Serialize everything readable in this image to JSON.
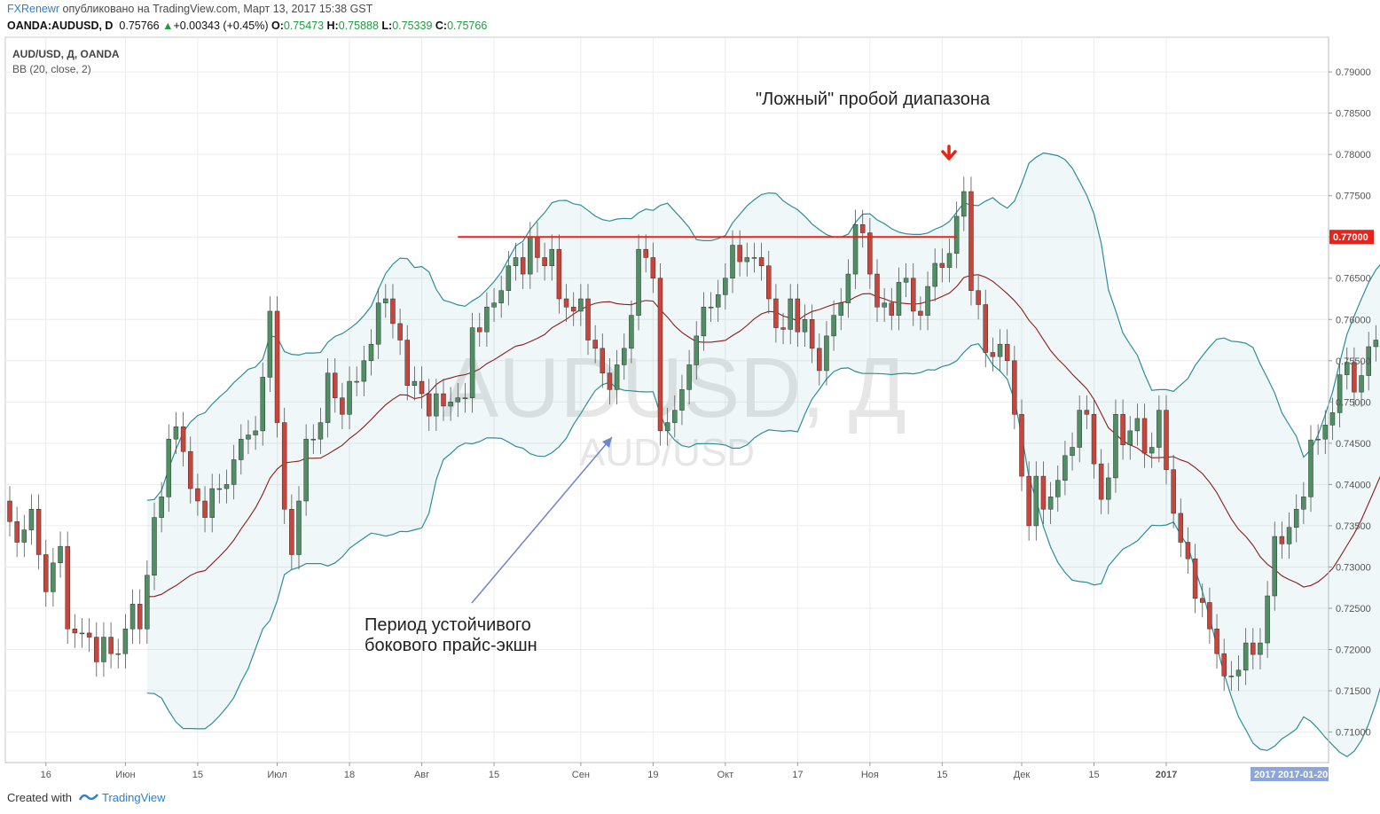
{
  "header": {
    "publisher": "FXRenewr",
    "published_text": "опубликовано на TradingView.com, Март 13, 2017 15:38 GST",
    "symbol_line": "OANDA:AUDUSD, D",
    "last": "0.75766",
    "change": "+0.00343 (+0.45%)",
    "o_label": "O:",
    "o_value": "0.75473",
    "h_label": "H:",
    "h_value": "0.75888",
    "l_label": "L:",
    "l_value": "0.75339",
    "c_label": "C:",
    "c_value": "0.75766"
  },
  "footer": {
    "created_with": "Created with",
    "brand": "TradingView"
  },
  "colors": {
    "up": "#4f8f63",
    "down": "#c9443a",
    "band": "#2b8e98",
    "basis": "#8b1c1c",
    "level": "#e8231a",
    "accent": "#2a7fd4"
  },
  "chart_data": {
    "type": "candlestick",
    "title": "AUD/USD, Д, OANDA",
    "indicator": "BB (20, close, 2)",
    "watermark_main": "AUDUSD, Д",
    "watermark_sub": "AUD/USD",
    "x_ticks": [
      "16",
      "Июн",
      "15",
      "Июл",
      "18",
      "Авг",
      "15",
      "Сен",
      "19",
      "Окт",
      "17",
      "Ноя",
      "15",
      "Дек",
      "15",
      "2017"
    ],
    "x_tick_bars": [
      5,
      16,
      26,
      37,
      47,
      57,
      67,
      79,
      89,
      99,
      109,
      119,
      129,
      140,
      150,
      160
    ],
    "y_ticks": [
      0.71,
      0.715,
      0.72,
      0.725,
      0.73,
      0.735,
      0.74,
      0.745,
      0.75,
      0.755,
      0.76,
      0.765,
      0.77,
      0.775,
      0.78,
      0.785,
      0.79
    ],
    "y_tick_labels": [
      "0.71000",
      "0.71500",
      "0.72000",
      "0.72500",
      "0.73000",
      "0.73500",
      "0.74000",
      "0.74500",
      "0.75000",
      "0.75500",
      "0.76000",
      "0.76500",
      "0.77000",
      "0.77500",
      "0.78000",
      "0.78500",
      "0.79000"
    ],
    "ylim": [
      0.7063,
      0.7942
    ],
    "level_price": 0.77,
    "level_label": "0.77000",
    "level_range_bars": [
      62,
      131
    ],
    "date_labels": [
      "2017",
      "2017-01-20"
    ],
    "annotation_top": "\"Ложный\" пробой диапазона",
    "annotation_bottom_1": "Период устойчивого",
    "annotation_bottom_2": "бокового прайс-экшн",
    "close": [
      0.7355,
      0.733,
      0.7345,
      0.737,
      0.7315,
      0.727,
      0.7305,
      0.7325,
      0.7225,
      0.722,
      0.722,
      0.7215,
      0.7185,
      0.7215,
      0.7195,
      0.7195,
      0.7225,
      0.7255,
      0.7225,
      0.729,
      0.736,
      0.7385,
      0.7455,
      0.747,
      0.744,
      0.7395,
      0.738,
      0.736,
      0.7395,
      0.7395,
      0.74,
      0.743,
      0.7455,
      0.746,
      0.7465,
      0.753,
      0.761,
      0.7475,
      0.737,
      0.7315,
      0.738,
      0.7455,
      0.7455,
      0.7475,
      0.7535,
      0.7505,
      0.7485,
      0.7525,
      0.7525,
      0.755,
      0.757,
      0.762,
      0.7625,
      0.7595,
      0.7575,
      0.752,
      0.7525,
      0.751,
      0.7483,
      0.751,
      0.7495,
      0.75,
      0.7505,
      0.7505,
      0.759,
      0.7585,
      0.7615,
      0.762,
      0.7635,
      0.7665,
      0.7675,
      0.7655,
      0.77,
      0.7675,
      0.7665,
      0.7685,
      0.7625,
      0.7615,
      0.761,
      0.7625,
      0.7575,
      0.7565,
      0.7535,
      0.7515,
      0.7545,
      0.7565,
      0.7605,
      0.7685,
      0.7675,
      0.765,
      0.7465,
      0.7475,
      0.749,
      0.7515,
      0.7545,
      0.758,
      0.7615,
      0.7615,
      0.763,
      0.765,
      0.769,
      0.767,
      0.7675,
      0.7675,
      0.7665,
      0.7625,
      0.759,
      0.7588,
      0.7625,
      0.7585,
      0.76,
      0.7565,
      0.7538,
      0.758,
      0.7605,
      0.762,
      0.7655,
      0.7715,
      0.7705,
      0.7655,
      0.7615,
      0.762,
      0.7605,
      0.7645,
      0.765,
      0.761,
      0.7605,
      0.764,
      0.7668,
      0.7663,
      0.768,
      0.7725,
      0.7755,
      0.7635,
      0.7618,
      0.756,
      0.7555,
      0.757,
      0.755,
      0.7485,
      0.741,
      0.735,
      0.741,
      0.737,
      0.7385,
      0.7405,
      0.7435,
      0.7445,
      0.749,
      0.7485,
      0.7425,
      0.7382,
      0.7408,
      0.7485,
      0.7448,
      0.7465,
      0.748,
      0.7438,
      0.7445,
      0.749,
      0.7418,
      0.7365,
      0.733,
      0.731,
      0.7262,
      0.7257,
      0.7225,
      0.7195,
      0.7168,
      0.7168,
      0.7175,
      0.7208,
      0.7194,
      0.7208,
      0.7265,
      0.7337,
      0.7328,
      0.7348,
      0.737,
      0.7385,
      0.7454,
      0.7455,
      0.7472,
      0.7487,
      0.7533,
      0.7548,
      0.7512,
      0.7532,
      0.7567,
      0.7575,
      0.7577
    ]
  }
}
